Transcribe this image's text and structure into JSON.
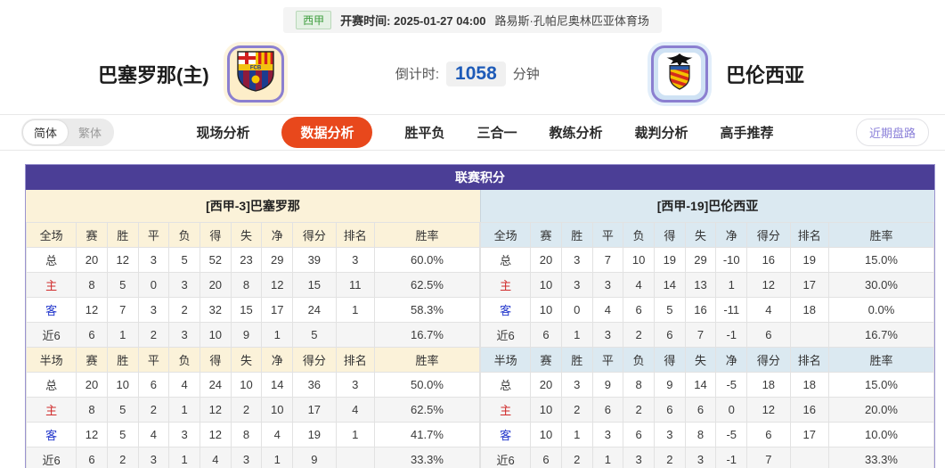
{
  "top_bar": {
    "league": "西甲",
    "kickoff_label": "开赛时间:",
    "kickoff_time": "2025-01-27 04:00",
    "venue": "路易斯·孔帕尼奥林匹亚体育场"
  },
  "teams": {
    "home_name": "巴塞罗那(主)",
    "away_name": "巴伦西亚",
    "countdown_label": "倒计时:",
    "countdown_value": "1058",
    "countdown_unit": "分钟"
  },
  "lang_toggle": {
    "options": [
      {
        "label": "简体",
        "active": true
      },
      {
        "label": "繁体",
        "active": false
      }
    ]
  },
  "tabs": {
    "items": [
      {
        "label": "现场分析",
        "active": false
      },
      {
        "label": "数据分析",
        "active": true
      },
      {
        "label": "胜平负",
        "active": false
      },
      {
        "label": "三合一",
        "active": false
      },
      {
        "label": "教练分析",
        "active": false
      },
      {
        "label": "裁判分析",
        "active": false
      },
      {
        "label": "高手推荐",
        "active": false
      }
    ],
    "recent_button": "近期盘路"
  },
  "table": {
    "title": "联赛积分",
    "home_header": "[西甲-3]巴塞罗那",
    "away_header": "[西甲-19]巴伦西亚",
    "columns_full": [
      "全场",
      "赛",
      "胜",
      "平",
      "负",
      "得",
      "失",
      "净",
      "得分",
      "排名",
      "胜率"
    ],
    "columns_half": [
      "半场",
      "赛",
      "胜",
      "平",
      "负",
      "得",
      "失",
      "净",
      "得分",
      "排名",
      "胜率"
    ],
    "home": {
      "full": [
        [
          "总",
          "20",
          "12",
          "3",
          "5",
          "52",
          "23",
          "29",
          "39",
          "3",
          "60.0%"
        ],
        [
          "主",
          "8",
          "5",
          "0",
          "3",
          "20",
          "8",
          "12",
          "15",
          "11",
          "62.5%"
        ],
        [
          "客",
          "12",
          "7",
          "3",
          "2",
          "32",
          "15",
          "17",
          "24",
          "1",
          "58.3%"
        ],
        [
          "近6",
          "6",
          "1",
          "2",
          "3",
          "10",
          "9",
          "1",
          "5",
          "",
          "16.7%"
        ]
      ],
      "half": [
        [
          "总",
          "20",
          "10",
          "6",
          "4",
          "24",
          "10",
          "14",
          "36",
          "3",
          "50.0%"
        ],
        [
          "主",
          "8",
          "5",
          "2",
          "1",
          "12",
          "2",
          "10",
          "17",
          "4",
          "62.5%"
        ],
        [
          "客",
          "12",
          "5",
          "4",
          "3",
          "12",
          "8",
          "4",
          "19",
          "1",
          "41.7%"
        ],
        [
          "近6",
          "6",
          "2",
          "3",
          "1",
          "4",
          "3",
          "1",
          "9",
          "",
          "33.3%"
        ]
      ]
    },
    "away": {
      "full": [
        [
          "总",
          "20",
          "3",
          "7",
          "10",
          "19",
          "29",
          "-10",
          "16",
          "19",
          "15.0%"
        ],
        [
          "主",
          "10",
          "3",
          "3",
          "4",
          "14",
          "13",
          "1",
          "12",
          "17",
          "30.0%"
        ],
        [
          "客",
          "10",
          "0",
          "4",
          "6",
          "5",
          "16",
          "-11",
          "4",
          "18",
          "0.0%"
        ],
        [
          "近6",
          "6",
          "1",
          "3",
          "2",
          "6",
          "7",
          "-1",
          "6",
          "",
          "16.7%"
        ]
      ],
      "half": [
        [
          "总",
          "20",
          "3",
          "9",
          "8",
          "9",
          "14",
          "-5",
          "18",
          "18",
          "15.0%"
        ],
        [
          "主",
          "10",
          "2",
          "6",
          "2",
          "6",
          "6",
          "0",
          "12",
          "16",
          "20.0%"
        ],
        [
          "客",
          "10",
          "1",
          "3",
          "6",
          "3",
          "8",
          "-5",
          "6",
          "17",
          "10.0%"
        ],
        [
          "近6",
          "6",
          "2",
          "1",
          "3",
          "2",
          "3",
          "-1",
          "7",
          "",
          "33.3%"
        ]
      ]
    }
  },
  "colors": {
    "accent_purple": "#4b3e96",
    "active_tab_orange": "#e8481c",
    "home_header_bg": "#fbf2d9",
    "away_header_bg": "#dbe9f1",
    "home_label_red": "#d02b2b",
    "away_label_blue": "#2337cc",
    "countdown_blue": "#1e5bb8",
    "league_green": "#3f9e3f",
    "recent_button_purple": "#8a7fd9"
  }
}
